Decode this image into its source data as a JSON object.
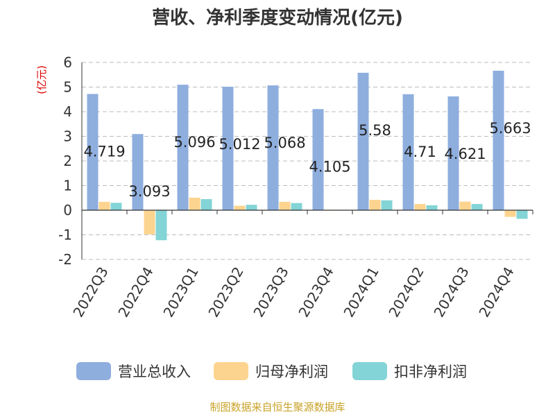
{
  "chart_data": {
    "type": "bar",
    "title": "营收、净利季度变动情况(亿元)",
    "ylabel": "(亿元)",
    "xlabel": "",
    "ylim": [
      -2,
      6
    ],
    "yticks": [
      6,
      5,
      4,
      3,
      2,
      1,
      0,
      -1,
      -2
    ],
    "grid": true,
    "legend_position": "bottom",
    "categories": [
      "2022Q3",
      "2022Q4",
      "2023Q1",
      "2023Q2",
      "2023Q3",
      "2023Q4",
      "2024Q1",
      "2024Q2",
      "2024Q3",
      "2024Q4"
    ],
    "series": [
      {
        "name": "营业总收入",
        "color": "#8eaede",
        "values": [
          4.719,
          3.093,
          5.096,
          5.012,
          5.068,
          4.105,
          5.58,
          4.71,
          4.621,
          5.663
        ]
      },
      {
        "name": "归母净利润",
        "color": "#fdd48f",
        "values": [
          0.34,
          -0.98,
          0.51,
          0.18,
          0.34,
          0.01,
          0.42,
          0.25,
          0.35,
          -0.27
        ]
      },
      {
        "name": "扣非净利润",
        "color": "#83d4d6",
        "values": [
          0.3,
          -1.22,
          0.45,
          0.22,
          0.29,
          0.01,
          0.4,
          0.2,
          0.25,
          -0.35
        ]
      }
    ],
    "data_labels": [
      "4.719",
      "3.093",
      "5.096",
      "5.012",
      "5.068",
      "4.105",
      "5.58",
      "4.71",
      "4.621",
      "5.663"
    ]
  },
  "colors": {
    "axis": "#333333",
    "grid": "#bbbbbb",
    "ylabel": "#dd0000",
    "source": "#c9a227"
  },
  "footer": {
    "source": "制图数据来自恒生聚源数据库"
  }
}
